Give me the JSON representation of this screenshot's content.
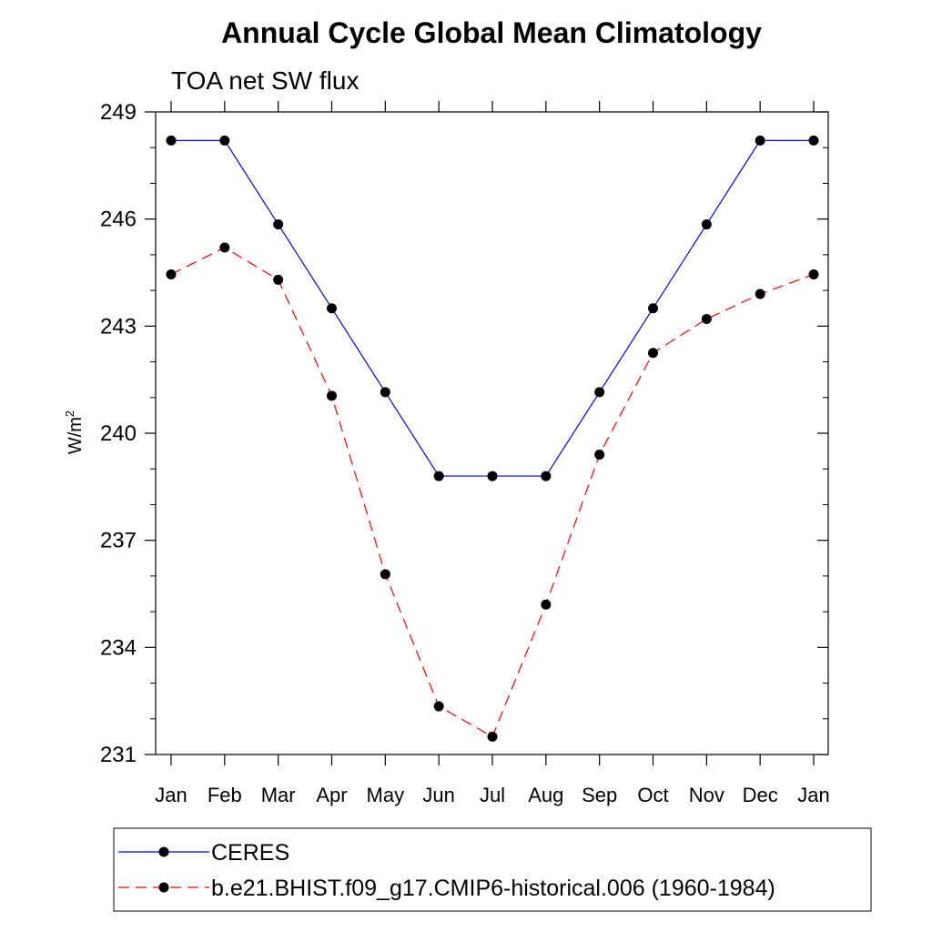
{
  "chart_data": {
    "type": "line",
    "title": "Annual Cycle Global Mean Climatology",
    "subtitle": "TOA net SW flux",
    "ylabel": "W/m",
    "ylabel_sup": "2",
    "xlabel": "",
    "categories": [
      "Jan",
      "Feb",
      "Mar",
      "Apr",
      "May",
      "Jun",
      "Jul",
      "Aug",
      "Sep",
      "Oct",
      "Nov",
      "Dec",
      "Jan"
    ],
    "ylim": [
      231,
      249
    ],
    "yticks": [
      231,
      234,
      237,
      240,
      243,
      246,
      249
    ],
    "yticks_labels": [
      "231",
      "234",
      "237",
      "240",
      "243",
      "246",
      "249"
    ],
    "y_minor_step": 1,
    "grid": false,
    "legend_position": "bottom",
    "series": [
      {
        "name": "CERES",
        "color": "#0000ff",
        "line_style": "solid",
        "marker": "filled-circle",
        "values": [
          248.2,
          248.2,
          245.85,
          243.5,
          241.15,
          238.8,
          238.8,
          238.8,
          241.15,
          243.5,
          245.85,
          248.2,
          248.2
        ]
      },
      {
        "name": "b.e21.BHIST.f09_g17.CMIP6-historical.006 (1960-1984)",
        "color": "#ff0000",
        "line_style": "dashed",
        "marker": "filled-circle",
        "values": [
          244.45,
          245.2,
          244.3,
          241.05,
          236.05,
          232.35,
          231.5,
          235.2,
          239.4,
          242.25,
          243.2,
          243.9,
          244.45
        ]
      }
    ]
  }
}
